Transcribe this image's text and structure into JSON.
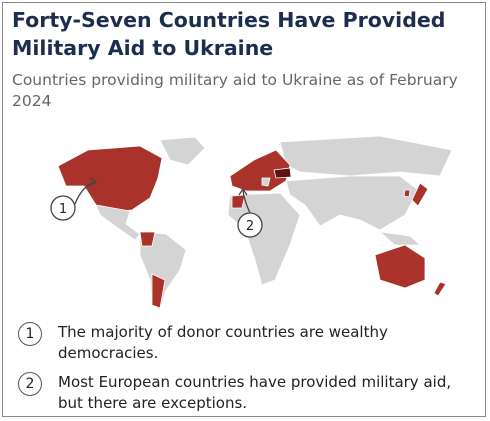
{
  "header": {
    "title": "Forty-Seven Countries Have Provided Military Aid to Ukraine",
    "subtitle": "Countries providing military aid to Ukraine as of February 2024"
  },
  "map": {
    "callouts": [
      {
        "label": "1"
      },
      {
        "label": "2"
      }
    ]
  },
  "notes": [
    {
      "number": "1",
      "text": "The majority of donor countries are wealthy democracies."
    },
    {
      "number": "2",
      "text": "Most European countries have provided military aid, but there are exceptions."
    }
  ]
}
